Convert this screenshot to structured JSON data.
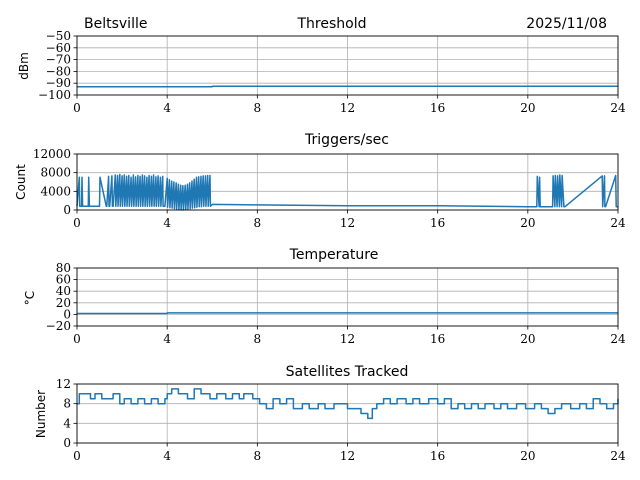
{
  "header": {
    "location": "Beltsville",
    "date": "2025/11/08"
  },
  "colors": {
    "line": "#1f77b4",
    "grid": "#b0b0b0",
    "axis": "#000000"
  },
  "chart_data": [
    {
      "id": "threshold",
      "type": "line",
      "title": "Threshold",
      "xlabel": "",
      "ylabel": "dBm",
      "xlim": [
        0,
        24
      ],
      "ylim": [
        -100,
        -50
      ],
      "xticks": [
        0,
        4,
        8,
        12,
        16,
        20,
        24
      ],
      "yticks": [
        -100,
        -90,
        -80,
        -70,
        -60,
        -50
      ],
      "ytick_labels": [
        "−100",
        "−90",
        "−80",
        "−70",
        "−60",
        "−50"
      ],
      "grid": true,
      "series": [
        {
          "name": "threshold",
          "x": [
            0,
            6,
            6,
            24
          ],
          "y": [
            -93,
            -93,
            -92.5,
            -92.5
          ]
        }
      ]
    },
    {
      "id": "triggers",
      "type": "line",
      "title": "Triggers/sec",
      "xlabel": "",
      "ylabel": "Count",
      "xlim": [
        0,
        24
      ],
      "ylim": [
        0,
        12000
      ],
      "xticks": [
        0,
        4,
        8,
        12,
        16,
        20,
        24
      ],
      "yticks": [
        0,
        4000,
        8000,
        12000
      ],
      "ytick_labels": [
        "0",
        "4000",
        "8000",
        "12000"
      ],
      "grid": true,
      "series": [
        {
          "name": "triggers",
          "baseline": 800,
          "x": [
            0,
            0.1,
            0.12,
            0.2,
            0.22,
            0.25,
            0.5,
            0.52,
            0.55,
            1.0,
            1.02,
            1.3,
            1.32,
            1.4,
            1.42,
            1.45,
            1.55,
            1.57,
            1.6,
            1.7,
            1.72,
            1.8,
            1.82,
            1.9,
            1.92,
            2.0,
            2.02,
            2.1,
            2.12,
            2.2,
            2.22,
            2.3,
            2.32,
            2.4,
            2.42,
            2.5,
            2.52,
            2.6,
            2.62,
            2.7,
            2.72,
            2.8,
            2.82,
            2.9,
            2.92,
            3.0,
            3.02,
            3.1,
            3.12,
            3.2,
            3.22,
            3.3,
            3.32,
            3.4,
            3.42,
            3.5,
            3.52,
            3.6,
            3.62,
            3.7,
            3.72,
            3.8,
            3.82,
            3.85,
            3.9,
            4.0,
            4.02,
            4.1,
            4.12,
            4.2,
            4.22,
            4.3,
            4.32,
            4.4,
            4.42,
            4.5,
            4.52,
            4.6,
            4.62,
            4.7,
            4.72,
            4.8,
            4.82,
            4.9,
            4.92,
            5.0,
            5.02,
            5.1,
            5.12,
            5.2,
            5.22,
            5.3,
            5.32,
            5.4,
            5.42,
            5.5,
            5.52,
            5.6,
            5.62,
            5.7,
            5.72,
            5.8,
            5.82,
            5.9,
            5.92,
            6.0,
            8,
            12,
            16,
            20,
            20.4,
            20.42,
            20.5,
            20.52,
            20.55,
            21.1,
            21.12,
            21.2,
            21.22,
            21.3,
            21.32,
            21.4,
            21.42,
            21.5,
            21.52,
            21.6,
            21.62,
            21.65,
            23.3,
            23.32,
            23.4,
            23.42,
            23.45,
            23.9,
            23.92,
            24
          ],
          "y": [
            800,
            7000,
            800,
            800,
            7000,
            800,
            800,
            7000,
            800,
            800,
            7000,
            800,
            800,
            7200,
            800,
            800,
            7300,
            800,
            800,
            7500,
            800,
            7400,
            800,
            7600,
            800,
            7300,
            800,
            7500,
            800,
            7200,
            800,
            7400,
            800,
            7000,
            800,
            7500,
            800,
            7100,
            800,
            7400,
            800,
            7200,
            800,
            7500,
            800,
            7300,
            800,
            7000,
            800,
            7400,
            800,
            7200,
            800,
            7500,
            800,
            7100,
            800,
            7300,
            800,
            7000,
            800,
            7200,
            800,
            800,
            800,
            6800,
            600,
            6500,
            500,
            6200,
            400,
            6000,
            300,
            5800,
            200,
            5500,
            100,
            5300,
            0,
            5200,
            0,
            5300,
            100,
            5500,
            200,
            5800,
            300,
            6200,
            400,
            6600,
            500,
            7000,
            600,
            7100,
            700,
            7200,
            700,
            7300,
            800,
            7300,
            800,
            7400,
            800,
            7400,
            800,
            1200,
            1100,
            900,
            900,
            700,
            700,
            7200,
            700,
            7000,
            700,
            700,
            7300,
            700,
            7400,
            700,
            7300,
            700,
            7500,
            700,
            7400,
            700,
            700,
            700,
            7300,
            700,
            7300,
            700,
            700,
            7400,
            700,
            700
          ]
        }
      ]
    },
    {
      "id": "temperature",
      "type": "line",
      "title": "Temperature",
      "xlabel": "",
      "ylabel": "°C",
      "xlim": [
        0,
        24
      ],
      "ylim": [
        -20,
        80
      ],
      "xticks": [
        0,
        4,
        8,
        12,
        16,
        20,
        24
      ],
      "yticks": [
        -20,
        0,
        20,
        40,
        60,
        80
      ],
      "ytick_labels": [
        "−20",
        "0",
        "20",
        "40",
        "60",
        "80"
      ],
      "grid": true,
      "series": [
        {
          "name": "temperature",
          "x": [
            0,
            4,
            4,
            24
          ],
          "y": [
            1.5,
            1.5,
            2.5,
            2.5
          ]
        }
      ]
    },
    {
      "id": "satellites",
      "type": "line",
      "title": "Satellites Tracked",
      "xlabel": "",
      "ylabel": "Number",
      "xlim": [
        0,
        24
      ],
      "ylim": [
        0,
        12
      ],
      "xticks": [
        0,
        4,
        8,
        12,
        16,
        20,
        24
      ],
      "yticks": [
        0,
        4,
        8,
        12
      ],
      "ytick_labels": [
        "0",
        "4",
        "8",
        "12"
      ],
      "grid": true,
      "series": [
        {
          "name": "satellites",
          "step": true,
          "x": [
            0,
            0.1,
            0.6,
            0.8,
            1.1,
            1.6,
            1.9,
            2.1,
            2.4,
            2.7,
            3.0,
            3.3,
            3.6,
            3.9,
            4.0,
            4.2,
            4.5,
            4.9,
            5.2,
            5.5,
            5.9,
            6.2,
            6.6,
            6.9,
            7.2,
            7.4,
            7.8,
            8.1,
            8.4,
            8.7,
            9.0,
            9.3,
            9.6,
            10.0,
            10.3,
            10.7,
            11.0,
            11.4,
            12.0,
            12.6,
            12.9,
            13.1,
            13.3,
            13.6,
            13.9,
            14.2,
            14.6,
            14.9,
            15.2,
            15.6,
            16.0,
            16.3,
            16.6,
            16.9,
            17.2,
            17.5,
            17.8,
            18.1,
            18.5,
            18.8,
            19.1,
            19.5,
            19.9,
            20.3,
            20.6,
            20.9,
            21.2,
            21.5,
            21.9,
            22.3,
            22.6,
            22.9,
            23.2,
            23.5,
            23.8,
            24
          ],
          "y": [
            8,
            10,
            9,
            10,
            9,
            10,
            8,
            9,
            8,
            9,
            8,
            9,
            8,
            9,
            10,
            11,
            10,
            9,
            11,
            10,
            9,
            10,
            9,
            10,
            9,
            10,
            9,
            8,
            7,
            9,
            8,
            9,
            7,
            8,
            7,
            8,
            7,
            8,
            7,
            6,
            5,
            7,
            8,
            9,
            8,
            9,
            8,
            9,
            8,
            9,
            8,
            9,
            7,
            8,
            7,
            8,
            7,
            8,
            7,
            8,
            7,
            8,
            7,
            8,
            7,
            6,
            7,
            8,
            7,
            8,
            7,
            9,
            8,
            7,
            8,
            9
          ]
        }
      ]
    }
  ]
}
